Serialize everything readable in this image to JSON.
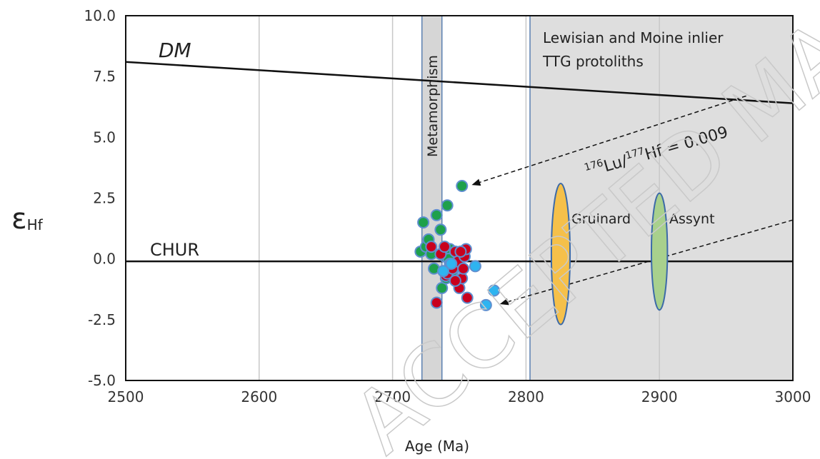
{
  "chart_data": {
    "type": "scatter",
    "xlabel": "Age (Ma)",
    "ylabel": "εHf",
    "ylabel_main": "ε",
    "ylabel_sub": "Hf",
    "xlim": [
      2500,
      3000
    ],
    "ylim": [
      -5.0,
      10.0
    ],
    "x_ticks": [
      2500,
      2600,
      2700,
      2800,
      2900,
      3000
    ],
    "y_ticks": [
      -5.0,
      -2.5,
      0.0,
      2.5,
      5.0,
      7.5,
      10.0
    ],
    "y_tick_labels": [
      "-5.0",
      "-2.5",
      "0.0",
      "2.5",
      "5.0",
      "7.5",
      "10.0"
    ],
    "grid": "vertical",
    "lines": {
      "dm": {
        "label": "DM",
        "points": [
          [
            2500,
            8.1
          ],
          [
            3000,
            6.4
          ]
        ]
      },
      "chur": {
        "label": "CHUR",
        "y": -0.1
      },
      "lu_hf_upper": {
        "points": [
          [
            2755,
            3.0
          ],
          [
            2965,
            6.7
          ]
        ]
      },
      "lu_hf_lower": {
        "points": [
          [
            2775,
            -1.9
          ],
          [
            3000,
            1.6
          ]
        ]
      }
    },
    "evolution_label": {
      "pre": "176",
      "lu": "Lu/",
      "mid": "177",
      "rest": "Hf = 0.009"
    },
    "regions": {
      "metamorphism": {
        "label": "Metamorphism",
        "x_range": [
          2722,
          2737
        ],
        "color": "#d6d6d6"
      },
      "protoliths": {
        "label_line1": "Lewisian and Moine inlier",
        "label_line2": "TTG protoliths",
        "x_range": [
          2803,
          3000
        ],
        "color": "#dedede"
      }
    },
    "ellipses": [
      {
        "label": "Gruinard",
        "cx": 2826,
        "cy": 0.2,
        "rx": 7,
        "ry": 2.9,
        "color": "#f5c04a"
      },
      {
        "label": "Assynt",
        "cx": 2900,
        "cy": 0.3,
        "rx": 6,
        "ry": 2.4,
        "color": "#a8d08d"
      }
    ],
    "series": [
      {
        "color": "#1ea04b",
        "points": [
          [
            2721,
            0.3
          ],
          [
            2723,
            1.5
          ],
          [
            2725,
            0.5
          ],
          [
            2727,
            0.8
          ],
          [
            2729,
            0.2
          ],
          [
            2731,
            -0.4
          ],
          [
            2733,
            1.8
          ],
          [
            2736,
            1.2
          ],
          [
            2739,
            0.1
          ],
          [
            2741,
            2.2
          ],
          [
            2743,
            0.4
          ],
          [
            2745,
            -0.5
          ],
          [
            2737,
            -1.2
          ],
          [
            2740,
            -0.8
          ],
          [
            2742,
            0.0
          ],
          [
            2748,
            -0.3
          ],
          [
            2752,
            3.0
          ]
        ]
      },
      {
        "color": "#c8001e",
        "points": [
          [
            2729,
            0.5
          ],
          [
            2733,
            -1.8
          ],
          [
            2736,
            0.2
          ],
          [
            2739,
            0.5
          ],
          [
            2740,
            -0.7
          ],
          [
            2741,
            -0.6
          ],
          [
            2743,
            -0.2
          ],
          [
            2745,
            -0.4
          ],
          [
            2747,
            0.3
          ],
          [
            2749,
            -0.1
          ],
          [
            2750,
            -1.2
          ],
          [
            2752,
            -0.8
          ],
          [
            2753,
            -0.4
          ],
          [
            2754,
            0.1
          ],
          [
            2755,
            0.4
          ],
          [
            2756,
            -1.6
          ],
          [
            2747,
            -0.9
          ],
          [
            2751,
            0.3
          ]
        ]
      },
      {
        "color": "#2eb4f0",
        "points": [
          [
            2762,
            -0.3
          ],
          [
            2770,
            -1.9
          ],
          [
            2776,
            -1.3
          ],
          [
            2744,
            -0.2
          ],
          [
            2738,
            -0.5
          ]
        ]
      }
    ]
  },
  "watermark": "ACCEPTED MANUSCRIPT"
}
